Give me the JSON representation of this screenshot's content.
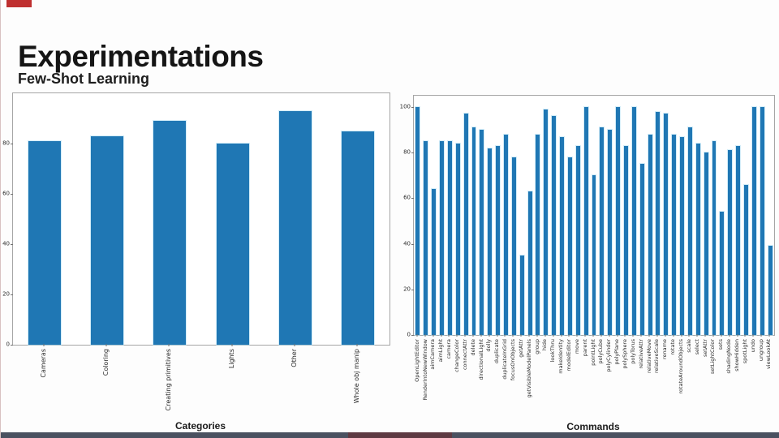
{
  "slide": {
    "title": "Experimentations",
    "subtitle": "Few-Shot Learning",
    "accent_color": "#bf3030",
    "bottom_bar_color": "#4a5160",
    "bottom_bar_accent_color": "#5e3a42"
  },
  "chart_data": [
    {
      "type": "bar",
      "title": "",
      "xlabel": "Categories",
      "ylabel": "",
      "categories": [
        "Cameras",
        "Coloring",
        "Creating primitives",
        "Lights",
        "Other",
        "Whole obj manip"
      ],
      "values": [
        81,
        83,
        89,
        80,
        93,
        85
      ],
      "ylim": [
        0,
        100
      ],
      "yticks": [
        0,
        20,
        40,
        60,
        80
      ],
      "bar_color": "#1f77b4",
      "bar_width_frac": 0.52,
      "grid": false,
      "legend": "none"
    },
    {
      "type": "bar",
      "title": "",
      "xlabel": "Commands",
      "ylabel": "",
      "categories": [
        "OpenLightEditor",
        "RenderIntoNewWindow",
        "aimCamera",
        "aimLight",
        "camera",
        "changeColor",
        "connectAttr",
        "delete",
        "directionalLight",
        "dolly",
        "duplicate",
        "duplicateInGrid",
        "focusOnObjects",
        "getAttr",
        "getVisibleModelPanels",
        "group",
        "hide",
        "lookThru",
        "makeIdentity",
        "modelEditor",
        "move",
        "parent",
        "pointLight",
        "polyCube",
        "polyCylinder",
        "polyPlane",
        "polySphere",
        "polyTorus",
        "relativeAttr",
        "relativeMove",
        "relativeScale",
        "rename",
        "rotate",
        "rotateAroundObjects",
        "scale",
        "select",
        "setAttr",
        "setLightColor",
        "sets",
        "shadingNode",
        "showHidden",
        "spotLight",
        "undo",
        "ungroup",
        "viewLookAt"
      ],
      "values": [
        100,
        85,
        64,
        85,
        85,
        84,
        97,
        91,
        90,
        82,
        83,
        88,
        78,
        35,
        63,
        88,
        99,
        96,
        87,
        78,
        83,
        100,
        70,
        91,
        90,
        100,
        83,
        100,
        75,
        88,
        98,
        97,
        88,
        87,
        91,
        84,
        80,
        85,
        54,
        81,
        83,
        66,
        100,
        100,
        39
      ],
      "ylim": [
        0,
        105
      ],
      "yticks": [
        0,
        20,
        40,
        60,
        80,
        100
      ],
      "bar_color": "#1f77b4",
      "bar_width_frac": 0.5,
      "grid": false,
      "legend": "none"
    }
  ]
}
